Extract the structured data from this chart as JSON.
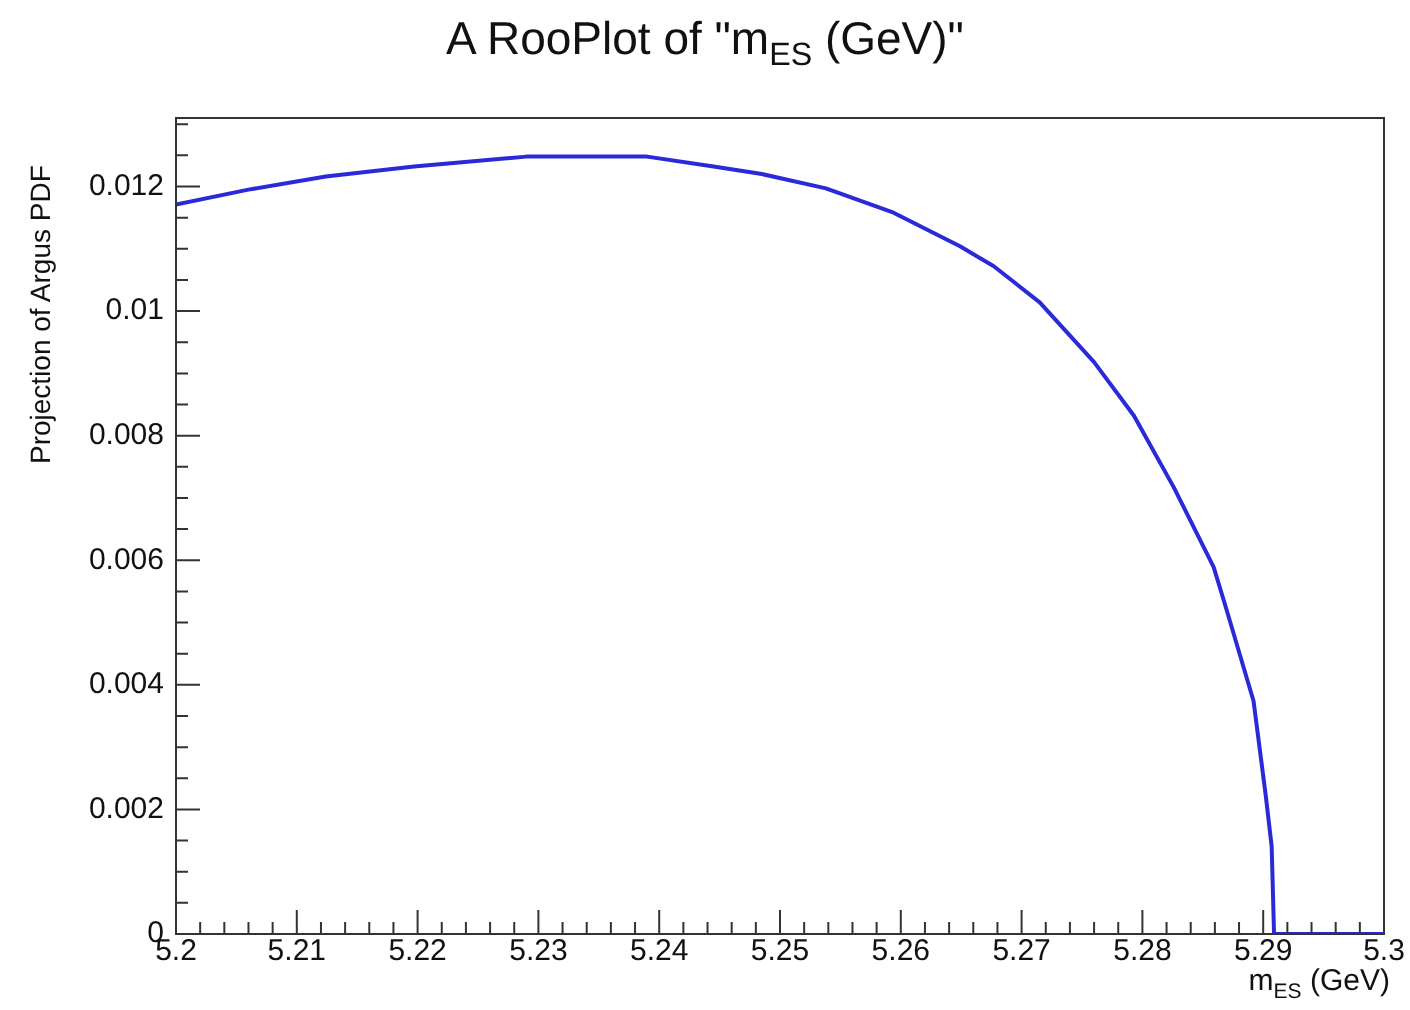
{
  "chart_data": {
    "type": "line",
    "title": "A RooPlot of \"m$_{ES}$ (GeV)\"",
    "xlabel": "m$_{ES}$ (GeV)",
    "ylabel": "Projection of Argus PDF",
    "marker": "none",
    "line_style": "solid",
    "xlim": [
      5.2,
      5.3
    ],
    "ylim": [
      0,
      0.0131
    ],
    "xticks": [
      5.2,
      {
        "value": 5.202,
        "label": null
      },
      {
        "value": 5.204,
        "label": null
      },
      {
        "value": 5.206,
        "label": null
      },
      {
        "value": 5.208,
        "label": null
      },
      5.21,
      {
        "value": 5.212,
        "label": null
      },
      {
        "value": 5.214,
        "label": null
      },
      {
        "value": 5.216,
        "label": null
      },
      {
        "value": 5.218,
        "label": null
      },
      5.22,
      {
        "value": 5.222,
        "label": null
      },
      {
        "value": 5.224,
        "label": null
      },
      {
        "value": 5.226,
        "label": null
      },
      {
        "value": 5.228,
        "label": null
      },
      5.23,
      {
        "value": 5.232,
        "label": null
      },
      {
        "value": 5.234,
        "label": null
      },
      {
        "value": 5.236,
        "label": null
      },
      {
        "value": 5.238,
        "label": null
      },
      5.24,
      {
        "value": 5.242,
        "label": null
      },
      {
        "value": 5.244,
        "label": null
      },
      {
        "value": 5.246,
        "label": null
      },
      {
        "value": 5.248,
        "label": null
      },
      5.25,
      {
        "value": 5.252,
        "label": null
      },
      {
        "value": 5.254,
        "label": null
      },
      {
        "value": 5.256,
        "label": null
      },
      {
        "value": 5.258,
        "label": null
      },
      5.26,
      {
        "value": 5.262,
        "label": null
      },
      {
        "value": 5.264,
        "label": null
      },
      {
        "value": 5.266,
        "label": null
      },
      {
        "value": 5.268,
        "label": null
      },
      5.27,
      {
        "value": 5.272,
        "label": null
      },
      {
        "value": 5.274,
        "label": null
      },
      {
        "value": 5.276,
        "label": null
      },
      {
        "value": 5.278,
        "label": null
      },
      5.28,
      {
        "value": 5.282,
        "label": null
      },
      {
        "value": 5.284,
        "label": null
      },
      {
        "value": 5.286,
        "label": null
      },
      {
        "value": 5.288,
        "label": null
      },
      5.29,
      {
        "value": 5.292,
        "label": null
      },
      {
        "value": 5.294,
        "label": null
      },
      {
        "value": 5.296,
        "label": null
      },
      {
        "value": 5.298,
        "label": null
      },
      5.3
    ],
    "yticks": [
      0,
      {
        "value": 0.0005,
        "label": null
      },
      {
        "value": 0.001,
        "label": null
      },
      {
        "value": 0.0015,
        "label": null
      },
      0.002,
      {
        "value": 0.0025,
        "label": null
      },
      {
        "value": 0.003,
        "label": null
      },
      {
        "value": 0.0035,
        "label": null
      },
      0.004,
      {
        "value": 0.0045,
        "label": null
      },
      {
        "value": 0.005,
        "label": null
      },
      {
        "value": 0.0055,
        "label": null
      },
      0.006,
      {
        "value": 0.0065,
        "label": null
      },
      {
        "value": 0.007,
        "label": null
      },
      {
        "value": 0.0075,
        "label": null
      },
      0.008,
      {
        "value": 0.0085,
        "label": null
      },
      {
        "value": 0.009,
        "label": null
      },
      {
        "value": 0.0095,
        "label": null
      },
      0.01,
      {
        "value": 0.0105,
        "label": null
      },
      {
        "value": 0.011,
        "label": null
      },
      {
        "value": 0.0115,
        "label": null
      },
      0.012,
      {
        "value": 0.0125,
        "label": null
      },
      {
        "value": 0.013,
        "label": null
      }
    ],
    "series": [
      {
        "color": "#2a2ad8",
        "x": [
          5.2,
          5.206,
          5.2124,
          5.2197,
          5.229,
          5.239,
          5.2445,
          5.2485,
          5.2538,
          5.2594,
          5.2649,
          5.2677,
          5.2715,
          5.276,
          5.2793,
          5.2826,
          5.2859,
          5.2869,
          5.2892,
          5.2902,
          5.2907,
          5.2909,
          5.3
        ],
        "values": [
          0.01171,
          0.01195,
          0.01216,
          0.01232,
          0.01248,
          0.01248,
          0.01232,
          0.0122,
          0.01197,
          0.01158,
          0.01104,
          0.01072,
          0.01014,
          0.00918,
          0.00832,
          0.00717,
          0.00589,
          0.00525,
          0.00374,
          0.00224,
          0.00141,
          0,
          0
        ]
      }
    ]
  }
}
